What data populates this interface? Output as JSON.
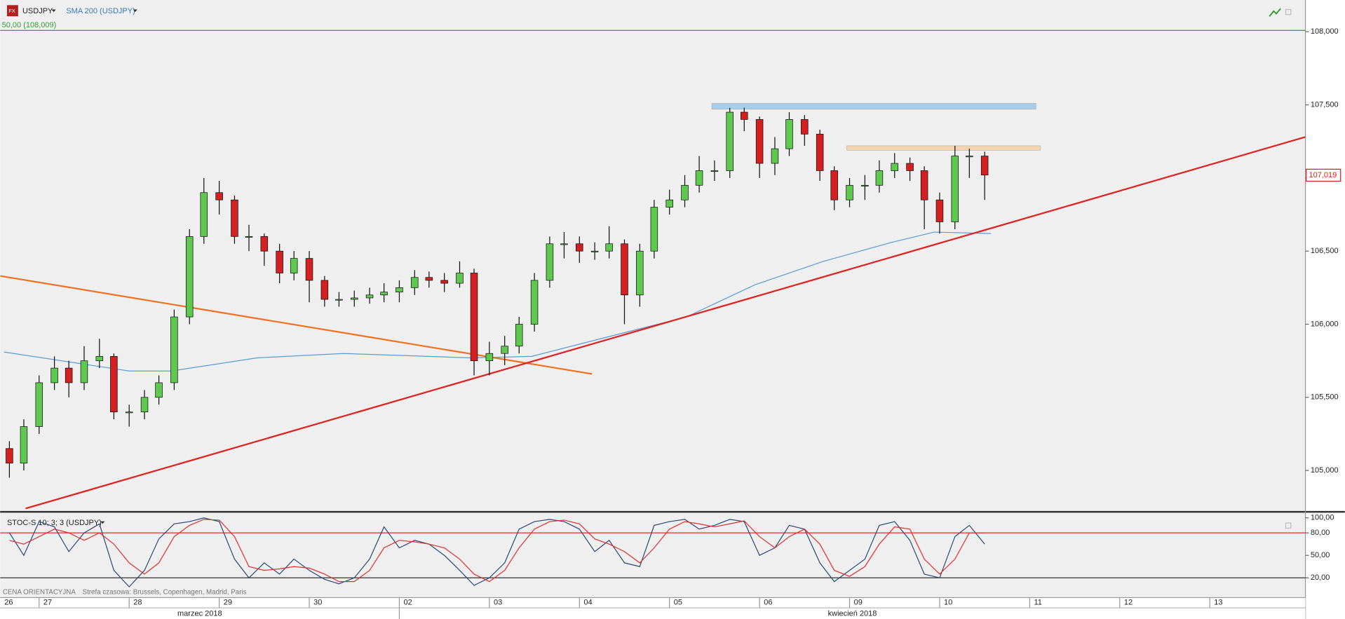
{
  "header": {
    "symbol": "USDJPY",
    "indicator": "SMA 200 (USDJPY)",
    "footer_price": "CENA ORIENTACYJNA",
    "footer_tz": "Strefa czasowa: Brussels, Copenhagen, Madrid, Paris"
  },
  "chart_data": {
    "type": "candlestick",
    "xlim": [
      0.567,
      15.062
    ],
    "ylim": [
      104.723,
      108.217
    ],
    "xticks": [
      {
        "value": 0,
        "label": "26"
      },
      {
        "value": 1,
        "label": "27"
      },
      {
        "value": 2,
        "label": "28"
      },
      {
        "value": 3,
        "label": "29"
      },
      {
        "value": 4,
        "label": "30"
      },
      {
        "value": 5,
        "label": "02"
      },
      {
        "value": 6,
        "label": "03"
      },
      {
        "value": 7,
        "label": "04"
      },
      {
        "value": 8,
        "label": "05"
      },
      {
        "value": 9,
        "label": "06"
      },
      {
        "value": 10,
        "label": "09"
      },
      {
        "value": 11,
        "label": "10"
      },
      {
        "value": 12,
        "label": "11"
      },
      {
        "value": 13,
        "label": "12"
      },
      {
        "value": 14,
        "label": "13"
      }
    ],
    "months": [
      "marzec 2018",
      "kwiecień 2018"
    ],
    "yticks": [
      {
        "value": 108,
        "label": "108,000"
      },
      {
        "value": 107.5,
        "label": "107,500"
      },
      {
        "value": 107,
        "label": "107,000"
      },
      {
        "value": 106.5,
        "label": "106,500"
      },
      {
        "value": 106,
        "label": "106,000"
      },
      {
        "value": 105.5,
        "label": "105,500"
      },
      {
        "value": 105,
        "label": "105,000"
      }
    ],
    "up_color": "#5ec94e",
    "down_color": "#d42020",
    "x": [
      0.67,
      0.83,
      1,
      1.17,
      1.33,
      1.5,
      1.67,
      1.83,
      2,
      2.17,
      2.33,
      2.5,
      2.67,
      2.83,
      3,
      3.17,
      3.33,
      3.5,
      3.67,
      3.83,
      4,
      4.17,
      4.33,
      4.5,
      4.67,
      4.83,
      5,
      5.17,
      5.33,
      5.5,
      5.67,
      5.83,
      6,
      6.17,
      6.33,
      6.5,
      6.67,
      6.83,
      7,
      7.17,
      7.33,
      7.5,
      7.67,
      7.83,
      8,
      8.17,
      8.33,
      8.5,
      8.67,
      8.83,
      9,
      9.17,
      9.33,
      9.5,
      9.67,
      9.83,
      10,
      10.17,
      10.33,
      10.5,
      10.67,
      10.83,
      11,
      11.17,
      11.33,
      11.5
    ],
    "open": [
      105.15,
      105.05,
      105.3,
      105.6,
      105.7,
      105.6,
      105.75,
      105.78,
      105.4,
      105.4,
      105.5,
      105.6,
      106.05,
      106.6,
      106.9,
      106.85,
      106.6,
      106.6,
      106.5,
      106.35,
      106.45,
      106.3,
      106.17,
      106.17,
      106.18,
      106.2,
      106.22,
      106.25,
      106.32,
      106.3,
      106.28,
      106.35,
      105.75,
      105.8,
      105.85,
      106.0,
      106.3,
      106.55,
      106.55,
      106.5,
      106.5,
      106.55,
      106.2,
      106.5,
      106.8,
      106.85,
      106.95,
      107.05,
      107.05,
      107.45,
      107.4,
      107.1,
      107.2,
      107.4,
      107.3,
      107.05,
      106.85,
      106.95,
      106.95,
      107.05,
      107.1,
      107.05,
      106.85,
      106.7,
      107.15,
      107.15
    ],
    "high": [
      105.2,
      105.35,
      105.65,
      105.78,
      105.75,
      105.85,
      105.9,
      105.8,
      105.45,
      105.55,
      105.65,
      106.1,
      106.65,
      107.0,
      106.98,
      106.88,
      106.68,
      106.62,
      106.55,
      106.5,
      106.5,
      106.33,
      106.22,
      106.23,
      106.25,
      106.28,
      106.3,
      106.37,
      106.36,
      106.35,
      106.43,
      106.38,
      105.88,
      105.92,
      106.05,
      106.35,
      106.6,
      106.63,
      106.6,
      106.56,
      106.67,
      106.58,
      106.55,
      106.85,
      106.92,
      107.02,
      107.15,
      107.12,
      107.48,
      107.48,
      107.42,
      107.28,
      107.45,
      107.43,
      107.33,
      107.08,
      107.0,
      107.02,
      107.12,
      107.17,
      107.14,
      107.08,
      106.9,
      107.22,
      107.2,
      107.18
    ],
    "low": [
      104.95,
      105.0,
      105.25,
      105.55,
      105.5,
      105.55,
      105.7,
      105.35,
      105.3,
      105.35,
      105.45,
      105.55,
      106.0,
      106.55,
      106.75,
      106.55,
      106.5,
      106.4,
      106.28,
      106.3,
      106.15,
      106.12,
      106.12,
      106.12,
      106.14,
      106.15,
      106.15,
      106.2,
      106.25,
      106.22,
      106.25,
      105.65,
      105.65,
      105.72,
      105.8,
      105.95,
      106.25,
      106.45,
      106.42,
      106.44,
      106.45,
      106.0,
      106.12,
      106.45,
      106.75,
      106.8,
      106.9,
      106.98,
      107.0,
      107.32,
      107.0,
      107.02,
      107.15,
      107.22,
      106.98,
      106.78,
      106.8,
      106.85,
      106.9,
      107.0,
      106.98,
      106.65,
      106.62,
      106.65,
      107.0,
      106.85
    ],
    "close": [
      105.05,
      105.3,
      105.6,
      105.7,
      105.6,
      105.75,
      105.78,
      105.4,
      105.4,
      105.5,
      105.6,
      106.05,
      106.6,
      106.9,
      106.85,
      106.6,
      106.6,
      106.5,
      106.35,
      106.45,
      106.3,
      106.17,
      106.17,
      106.18,
      106.2,
      106.22,
      106.25,
      106.32,
      106.3,
      106.28,
      106.35,
      105.75,
      105.8,
      105.85,
      106.0,
      106.3,
      106.55,
      106.55,
      106.5,
      106.5,
      106.55,
      106.2,
      106.5,
      106.8,
      106.85,
      106.95,
      107.05,
      107.05,
      107.45,
      107.4,
      107.1,
      107.2,
      107.4,
      107.3,
      107.05,
      106.85,
      106.95,
      106.95,
      107.05,
      107.1,
      107.05,
      106.85,
      106.7,
      107.15,
      107.15,
      107.02
    ],
    "sma": {
      "color": "#5b9bd5",
      "x": [
        0.61,
        2.0,
        2.47,
        3.42,
        4.38,
        5.8,
        6.47,
        7.23,
        8.19,
        8.95,
        9.71,
        10.47,
        10.94,
        11.57
      ],
      "values": [
        105.81,
        105.68,
        105.68,
        105.77,
        105.8,
        105.77,
        105.78,
        105.9,
        106.05,
        106.27,
        106.43,
        106.56,
        106.63,
        106.62
      ]
    },
    "trendlines": [
      {
        "color": "#f07020",
        "x": [
          0.57,
          7.14
        ],
        "y": [
          106.33,
          105.66
        ]
      },
      {
        "color": "#e02020",
        "x": [
          0.85,
          15.06
        ],
        "y": [
          104.74,
          107.28
        ]
      }
    ],
    "zones": [
      {
        "color": "#a9cde8",
        "x": [
          8.47,
          12.07
        ],
        "y": [
          107.51,
          107.47
        ]
      },
      {
        "color": "#f5d5b0",
        "x": [
          9.97,
          12.12
        ],
        "y": [
          107.22,
          107.19
        ]
      }
    ],
    "level_line": {
      "label": "50,00 (108,009)",
      "value": 108.009,
      "color": "#3a9a3a"
    },
    "last_price": {
      "value": 107.019,
      "label": "107,019"
    },
    "stochastic": {
      "title": "STOC-S 10; 3; 3 (USDJPY)",
      "ylim": [
        -6.3,
        106.9
      ],
      "yticks": [
        {
          "value": 100,
          "label": "100,00"
        },
        {
          "value": 80,
          "label": "80,00"
        },
        {
          "value": 50,
          "label": "50,00"
        },
        {
          "value": 20,
          "label": "20,00"
        }
      ],
      "series": [
        {
          "color": "#2a4a7a",
          "values": [
            80,
            50,
            95,
            88,
            55,
            80,
            92,
            30,
            8,
            30,
            72,
            92,
            95,
            100,
            95,
            45,
            20,
            40,
            25,
            45,
            30,
            18,
            12,
            20,
            45,
            88,
            60,
            70,
            65,
            50,
            30,
            10,
            20,
            40,
            85,
            95,
            98,
            95,
            85,
            55,
            70,
            40,
            35,
            90,
            95,
            98,
            85,
            90,
            98,
            95,
            50,
            60,
            90,
            85,
            40,
            15,
            30,
            45,
            90,
            95,
            70,
            25,
            20,
            75,
            90,
            65
          ]
        },
        {
          "color": "#e03030",
          "values": [
            70,
            65,
            75,
            85,
            80,
            70,
            80,
            65,
            40,
            25,
            40,
            75,
            90,
            98,
            97,
            75,
            35,
            30,
            32,
            35,
            33,
            25,
            15,
            15,
            30,
            60,
            70,
            68,
            65,
            60,
            45,
            25,
            15,
            30,
            60,
            85,
            95,
            97,
            92,
            72,
            65,
            55,
            40,
            60,
            85,
            95,
            92,
            88,
            92,
            96,
            75,
            60,
            75,
            85,
            65,
            30,
            22,
            35,
            65,
            88,
            85,
            45,
            25,
            45,
            80,
            80
          ]
        }
      ]
    }
  }
}
